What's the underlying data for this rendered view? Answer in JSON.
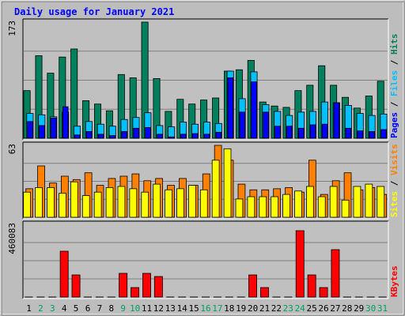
{
  "chart_data": {
    "type": "bar",
    "title": "Daily usage for January 2021",
    "x": [
      "1",
      "2",
      "3",
      "4",
      "5",
      "6",
      "7",
      "8",
      "9",
      "10",
      "11",
      "12",
      "13",
      "14",
      "15",
      "16",
      "17",
      "18",
      "19",
      "20",
      "21",
      "22",
      "23",
      "24",
      "25",
      "26",
      "27",
      "28",
      "29",
      "30",
      "31"
    ],
    "weekend_days": [
      "2",
      "3",
      "9",
      "10",
      "16",
      "17",
      "23",
      "24",
      "30",
      "31"
    ],
    "panels": [
      {
        "name": "hits_files_pages",
        "max_label": "173",
        "ylim": [
          0,
          173
        ],
        "right_labels": [
          "Pages",
          "Files",
          "Hits"
        ],
        "series": [
          {
            "name": "Hits",
            "color": "#00805c",
            "values": [
              71,
              123,
              97,
              121,
              133,
              56,
              51,
              41,
              95,
              90,
              173,
              89,
              40,
              58,
              51,
              57,
              60,
              100,
              102,
              116,
              54,
              48,
              46,
              71,
              79,
              108,
              79,
              61,
              45,
              63,
              85
            ]
          },
          {
            "name": "Files",
            "color": "#00c0ff",
            "values": [
              37,
              35,
              32,
              39,
              18,
              25,
              21,
              18,
              28,
              31,
              38,
              19,
              17,
              24,
              21,
              24,
              22,
              100,
              59,
              99,
              50,
              40,
              34,
              39,
              40,
              54,
              53,
              49,
              37,
              34,
              36
            ]
          },
          {
            "name": "Pages",
            "color": "#0000ff",
            "values": [
              25,
              19,
              30,
              47,
              5,
              10,
              6,
              4,
              10,
              15,
              16,
              6,
              2,
              6,
              7,
              6,
              9,
              90,
              39,
              84,
              39,
              18,
              18,
              15,
              20,
              21,
              53,
              15,
              11,
              10,
              13
            ]
          }
        ]
      },
      {
        "name": "visits_sites",
        "max_label": "63",
        "ylim": [
          0,
          63
        ],
        "right_labels": [
          "Sites",
          "Visits"
        ],
        "series": [
          {
            "name": "Visits",
            "color": "#ff8000",
            "values": [
              25,
              45,
              30,
              36,
              33,
              39,
              28,
              34,
              36,
              38,
              32,
              34,
              28,
              34,
              28,
              38,
              63,
              50,
              29,
              24,
              24,
              25,
              26,
              22,
              50,
              20,
              32,
              39,
              24,
              26,
              20
            ]
          },
          {
            "name": "Sites",
            "color": "#ffff00",
            "values": [
              22,
              26,
              26,
              21,
              31,
              19,
              22,
              26,
              27,
              25,
              22,
              29,
              24,
              25,
              28,
              24,
              50,
              60,
              16,
              18,
              18,
              18,
              20,
              23,
              27,
              18,
              27,
              15,
              27,
              29,
              27
            ]
          }
        ]
      },
      {
        "name": "kbytes",
        "max_label": "460083",
        "ylim": [
          0,
          460083
        ],
        "right_labels": [
          "KBytes"
        ],
        "series": [
          {
            "name": "KBytes",
            "color": "#ff0000",
            "values": [
              0,
              0,
              0,
              290000,
              140000,
              0,
              0,
              0,
              150000,
              60000,
              150000,
              130000,
              0,
              0,
              0,
              0,
              0,
              0,
              0,
              140000,
              60000,
              0,
              0,
              420000,
              140000,
              60000,
              300000,
              0,
              0,
              0,
              0
            ]
          }
        ]
      }
    ]
  },
  "colors": {
    "background": "#c0c0c0",
    "plot_bg": "#c0c0c0",
    "title": "#0000ff",
    "axis_label": "#000000",
    "weekend_day": "#00a060",
    "frame_dark": "#000000",
    "frame_light": "#ffffff",
    "grid": "#808080"
  }
}
